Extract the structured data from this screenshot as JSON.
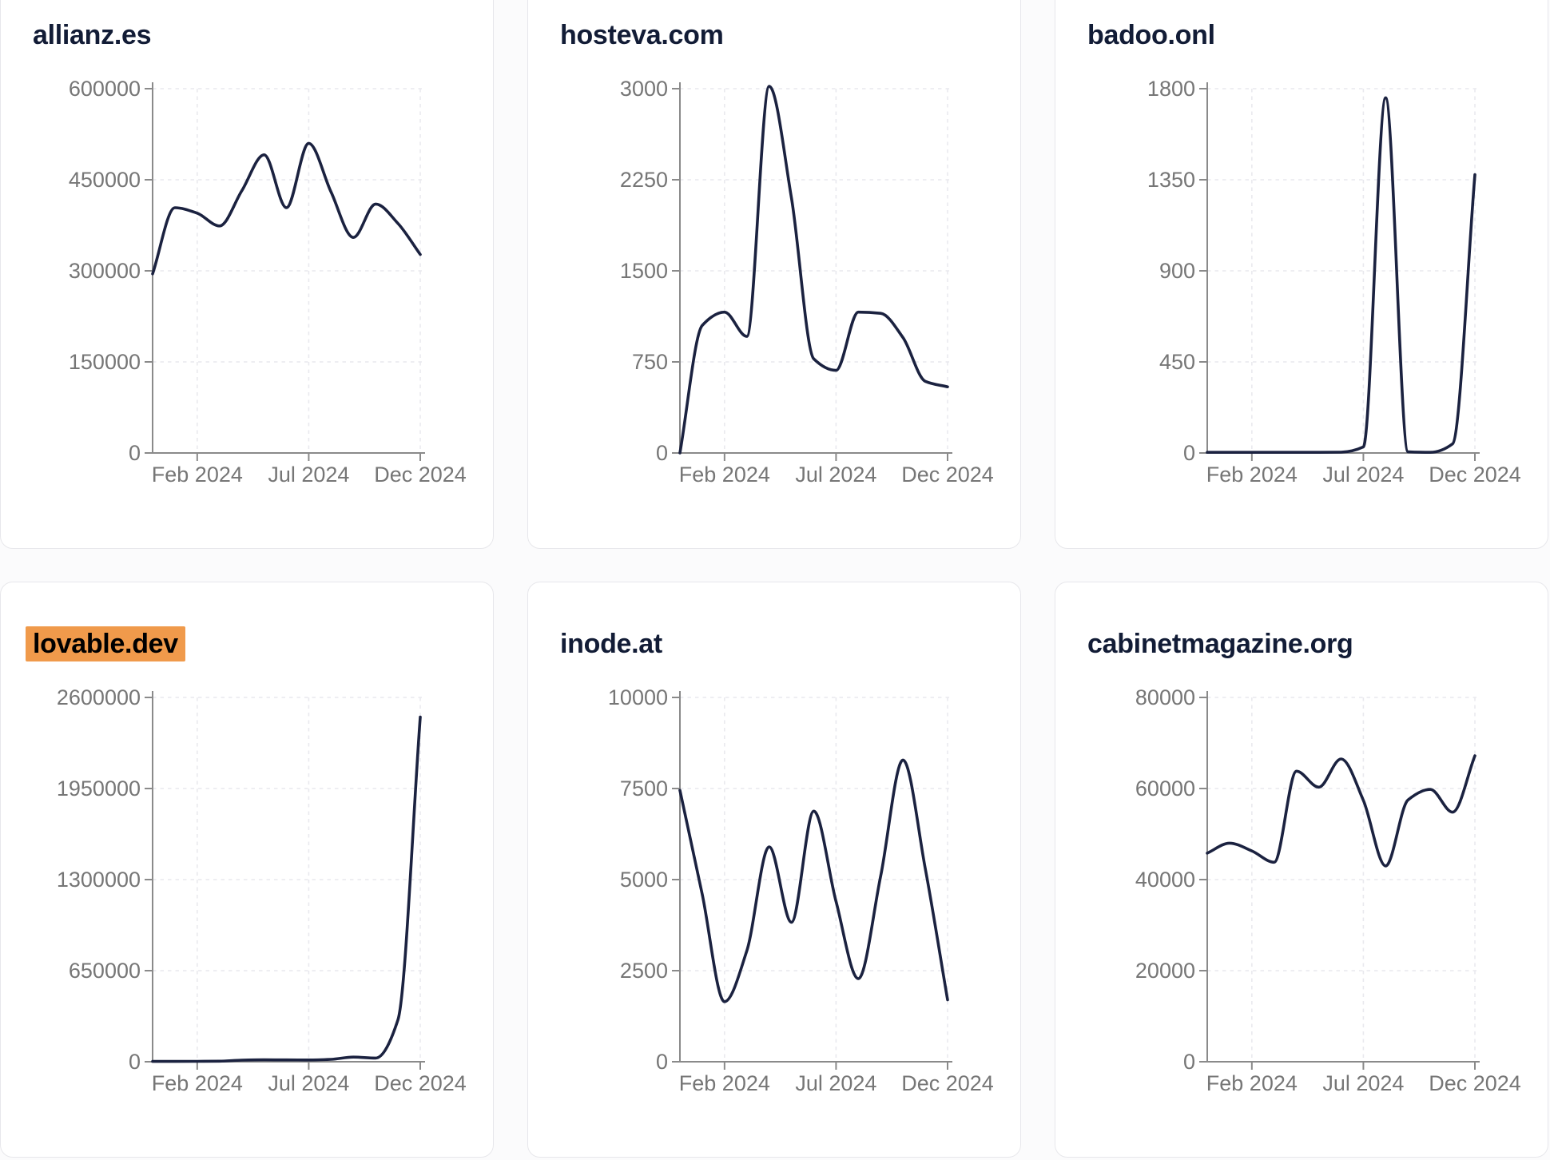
{
  "styles": {
    "line_color": "#1B2240",
    "axis_color": "#8A8A8A",
    "tick_label_color": "#767676",
    "grid_color": "#E9E9EE",
    "title_color": "#121C36",
    "highlight_bg": "#F09A4B",
    "highlight_text": "#000000",
    "card_bg": "#FFFFFF",
    "card_border": "#E7E7EB",
    "page_bg": "#FBFBFC"
  },
  "chart_data": [
    {
      "type": "line",
      "title": "allianz.es",
      "title_highlighted": false,
      "x_months": [
        "2023-12",
        "2024-01",
        "2024-02",
        "2024-03",
        "2024-04",
        "2024-05",
        "2024-06",
        "2024-07",
        "2024-08",
        "2024-09",
        "2024-10",
        "2024-11",
        "2024-12"
      ],
      "x_tick_labels": [
        "Feb 2024",
        "Jul 2024",
        "Dec 2024"
      ],
      "x_tick_month_indices": [
        2,
        7,
        12
      ],
      "values": [
        295000,
        404000,
        395000,
        374000,
        432000,
        491000,
        404000,
        510000,
        430000,
        355000,
        410000,
        378000,
        327000
      ],
      "y_ticks": [
        600000,
        450000,
        300000,
        150000,
        0
      ],
      "ylim": [
        0,
        600000
      ],
      "grid": true,
      "legend": false
    },
    {
      "type": "line",
      "title": "hosteva.com",
      "title_highlighted": false,
      "x_months": [
        "2023-12",
        "2024-01",
        "2024-02",
        "2024-03",
        "2024-04",
        "2024-05",
        "2024-06",
        "2024-07",
        "2024-08",
        "2024-09",
        "2024-10",
        "2024-11",
        "2024-12"
      ],
      "x_tick_labels": [
        "Feb 2024",
        "Jul 2024",
        "Dec 2024"
      ],
      "x_tick_month_indices": [
        2,
        7,
        12
      ],
      "values": [
        0,
        1050,
        1160,
        960,
        3020,
        2100,
        775,
        680,
        1160,
        1150,
        950,
        590,
        545
      ],
      "y_ticks": [
        3000,
        2250,
        1500,
        750,
        0
      ],
      "ylim": [
        0,
        3000
      ],
      "grid": true,
      "legend": false
    },
    {
      "type": "line",
      "title": "badoo.onl",
      "title_highlighted": false,
      "x_months": [
        "2023-12",
        "2024-01",
        "2024-02",
        "2024-03",
        "2024-04",
        "2024-05",
        "2024-06",
        "2024-07",
        "2024-08",
        "2024-09",
        "2024-10",
        "2024-11",
        "2024-12"
      ],
      "x_tick_labels": [
        "Feb 2024",
        "Jul 2024",
        "Dec 2024"
      ],
      "x_tick_month_indices": [
        2,
        7,
        12
      ],
      "values": [
        3,
        3,
        3,
        3,
        3,
        3,
        4,
        30,
        1755,
        6,
        3,
        45,
        1375
      ],
      "y_ticks": [
        1800,
        1350,
        900,
        450,
        0
      ],
      "ylim": [
        0,
        1800
      ],
      "grid": true,
      "legend": false
    },
    {
      "type": "line",
      "title": "lovable.dev",
      "title_highlighted": true,
      "x_months": [
        "2023-12",
        "2024-01",
        "2024-02",
        "2024-03",
        "2024-04",
        "2024-05",
        "2024-06",
        "2024-07",
        "2024-08",
        "2024-09",
        "2024-10",
        "2024-11",
        "2024-12"
      ],
      "x_tick_labels": [
        "Feb 2024",
        "Jul 2024",
        "Dec 2024"
      ],
      "x_tick_month_indices": [
        2,
        7,
        12
      ],
      "values": [
        2000,
        2500,
        3000,
        4000,
        11500,
        13500,
        13000,
        12500,
        17000,
        33000,
        26000,
        300000,
        2460000
      ],
      "y_ticks": [
        2600000,
        1950000,
        1300000,
        650000,
        0
      ],
      "ylim": [
        0,
        2600000
      ],
      "grid": true,
      "legend": false
    },
    {
      "type": "line",
      "title": "inode.at",
      "title_highlighted": false,
      "x_months": [
        "2023-12",
        "2024-01",
        "2024-02",
        "2024-03",
        "2024-04",
        "2024-05",
        "2024-06",
        "2024-07",
        "2024-08",
        "2024-09",
        "2024-10",
        "2024-11",
        "2024-12"
      ],
      "x_tick_labels": [
        "Feb 2024",
        "Jul 2024",
        "Dec 2024"
      ],
      "x_tick_month_indices": [
        2,
        7,
        12
      ],
      "values": [
        7450,
        4600,
        1650,
        3050,
        5900,
        3830,
        6880,
        4400,
        2280,
        5100,
        8280,
        5300,
        1700
      ],
      "y_ticks": [
        10000,
        7500,
        5000,
        2500,
        0
      ],
      "ylim": [
        0,
        10000
      ],
      "grid": true,
      "legend": false
    },
    {
      "type": "line",
      "title": "cabinetmagazine.org",
      "title_highlighted": false,
      "x_months": [
        "2023-12",
        "2024-01",
        "2024-02",
        "2024-03",
        "2024-04",
        "2024-05",
        "2024-06",
        "2024-07",
        "2024-08",
        "2024-09",
        "2024-10",
        "2024-11",
        "2024-12"
      ],
      "x_tick_labels": [
        "Feb 2024",
        "Jul 2024",
        "Dec 2024"
      ],
      "x_tick_month_indices": [
        2,
        7,
        12
      ],
      "values": [
        45800,
        48000,
        46300,
        43800,
        63800,
        60300,
        66500,
        57400,
        43000,
        57500,
        59800,
        54800,
        67200
      ],
      "y_ticks": [
        80000,
        60000,
        40000,
        20000,
        0
      ],
      "ylim": [
        0,
        80000
      ],
      "grid": true,
      "legend": false
    }
  ]
}
